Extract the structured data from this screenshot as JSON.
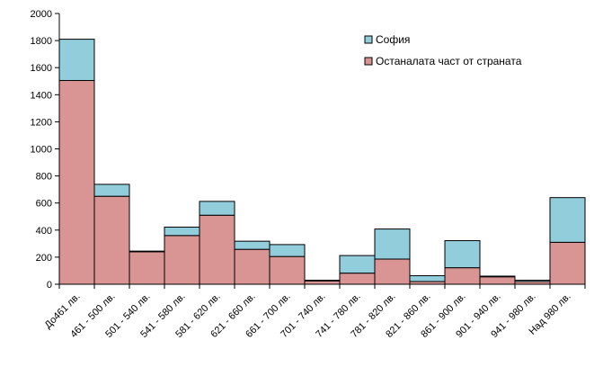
{
  "chart_data": {
    "type": "bar",
    "stacked": true,
    "categories": [
      "До461 лв.",
      "461 - 500 лв.",
      "501 - 540 лв.",
      "541 - 580 лв.",
      "581 - 620 лв.",
      "621 - 660 лв.",
      "661 - 700 лв.",
      "701 - 740 лв.",
      "741 - 780 лв.",
      "781 - 820 лв.",
      "821 - 860 лв.",
      "861 - 900 лв.",
      "901 - 940 лв.",
      "941 - 980 лв.",
      "Над 980 лв."
    ],
    "series": [
      {
        "name": "Останалата част от страната",
        "color": "#d99594",
        "values": [
          1505,
          650,
          240,
          360,
          510,
          258,
          205,
          25,
          82,
          186,
          20,
          122,
          55,
          20,
          310
        ]
      },
      {
        "name": "София",
        "color": "#92cddc",
        "values": [
          305,
          88,
          5,
          62,
          102,
          60,
          88,
          5,
          130,
          222,
          43,
          200,
          5,
          10,
          330
        ]
      }
    ],
    "ylim": [
      0,
      2000
    ],
    "yticks": [
      0,
      200,
      400,
      600,
      800,
      1000,
      1200,
      1400,
      1600,
      1800,
      2000
    ],
    "legend_position": "top-right",
    "legend_order": [
      "София",
      "Останалата част от страната"
    ],
    "grid": false
  }
}
